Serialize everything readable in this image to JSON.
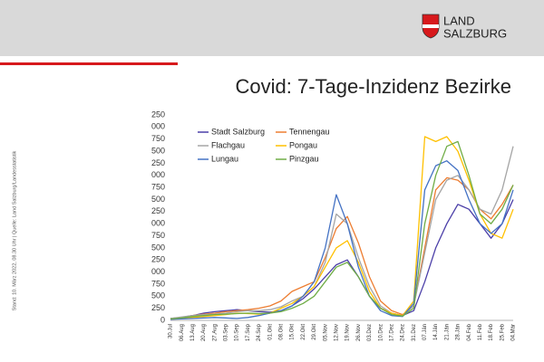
{
  "logo": [
    "LAND",
    "SALZBURG"
  ],
  "side_note": "Stand: 10. März 2022, 08.30 Uhr | Quelle: Land Salzburg/Landesstatistik",
  "chart_data": {
    "type": "line",
    "title": "Covid: 7-Tage-Inzidenz Bezirke",
    "categories": [
      "30.Jul",
      "06.Aug",
      "13.Aug",
      "20.Aug",
      "27.Aug",
      "03.Sep",
      "10.Sep",
      "17.Sep",
      "24.Sep",
      "01.Okt",
      "08.Okt",
      "15.Okt",
      "22.Okt",
      "29.Okt",
      "05.Nov",
      "12.Nov",
      "19.Nov",
      "26.Nov",
      "03.Dez",
      "10.Dez",
      "17.Dez",
      "24.Dez",
      "31.Dez",
      "07.Jän",
      "14.Jän",
      "21.Jän",
      "28.Jän",
      "04.Feb",
      "11.Feb",
      "18.Feb",
      "25.Feb",
      "04.Mär"
    ],
    "series": [
      {
        "name": "Stadt Salzburg",
        "color": "#4b3fa8",
        "values": [
          40,
          60,
          100,
          150,
          180,
          200,
          220,
          200,
          180,
          170,
          200,
          300,
          450,
          650,
          900,
          1150,
          1250,
          900,
          500,
          250,
          150,
          100,
          200,
          800,
          1500,
          2000,
          2400,
          2300,
          2000,
          1700,
          2000,
          2500
        ]
      },
      {
        "name": "Tennengau",
        "color": "#ed7d31",
        "values": [
          30,
          60,
          100,
          130,
          150,
          180,
          200,
          220,
          250,
          300,
          400,
          600,
          700,
          800,
          1300,
          1900,
          2150,
          1600,
          900,
          400,
          200,
          120,
          300,
          1500,
          2700,
          2950,
          2900,
          2700,
          2300,
          2100,
          2400,
          2800
        ]
      },
      {
        "name": "Flachgau",
        "color": "#a5a5a5",
        "values": [
          40,
          70,
          100,
          120,
          130,
          150,
          180,
          200,
          200,
          220,
          280,
          400,
          500,
          700,
          1200,
          2200,
          2000,
          1300,
          700,
          300,
          150,
          100,
          300,
          1400,
          2500,
          2900,
          3000,
          2700,
          2300,
          2200,
          2700,
          3600
        ]
      },
      {
        "name": "Pongau",
        "color": "#ffc000",
        "values": [
          20,
          40,
          60,
          80,
          100,
          120,
          150,
          140,
          130,
          150,
          250,
          350,
          500,
          700,
          1100,
          1500,
          1650,
          1200,
          600,
          250,
          150,
          100,
          400,
          3800,
          3700,
          3800,
          3500,
          2900,
          2200,
          1800,
          1700,
          2300
        ]
      },
      {
        "name": "Lungau",
        "color": "#4472c4",
        "values": [
          20,
          30,
          40,
          50,
          60,
          50,
          40,
          60,
          100,
          150,
          200,
          300,
          500,
          800,
          1500,
          2600,
          2000,
          1100,
          500,
          200,
          100,
          80,
          350,
          2700,
          3200,
          3300,
          3100,
          2500,
          2000,
          1800,
          2000,
          2700
        ]
      },
      {
        "name": "Pinzgau",
        "color": "#70ad47",
        "values": [
          30,
          50,
          80,
          100,
          120,
          130,
          140,
          150,
          140,
          150,
          180,
          250,
          350,
          500,
          800,
          1100,
          1200,
          900,
          500,
          250,
          120,
          90,
          250,
          2000,
          3000,
          3600,
          3700,
          3000,
          2200,
          2000,
          2300,
          2800
        ]
      }
    ],
    "ylim": [
      0,
      4250
    ],
    "yticks": [
      0,
      250,
      500,
      750,
      {
        "value": 1000,
        "label": "000"
      },
      {
        "value": 1250,
        "label": "250"
      },
      {
        "value": 1500,
        "label": "500"
      },
      {
        "value": 1750,
        "label": "750"
      },
      {
        "value": 2000,
        "label": "000"
      },
      {
        "value": 2250,
        "label": "250"
      },
      {
        "value": 2500,
        "label": "500"
      },
      {
        "value": 2750,
        "label": "750"
      },
      {
        "value": 3000,
        "label": "000"
      },
      {
        "value": 3250,
        "label": "250"
      },
      {
        "value": 3500,
        "label": "500"
      },
      {
        "value": 3750,
        "label": "750"
      },
      {
        "value": 4000,
        "label": "000"
      },
      {
        "value": 4250,
        "label": "250"
      }
    ],
    "grid": false
  }
}
